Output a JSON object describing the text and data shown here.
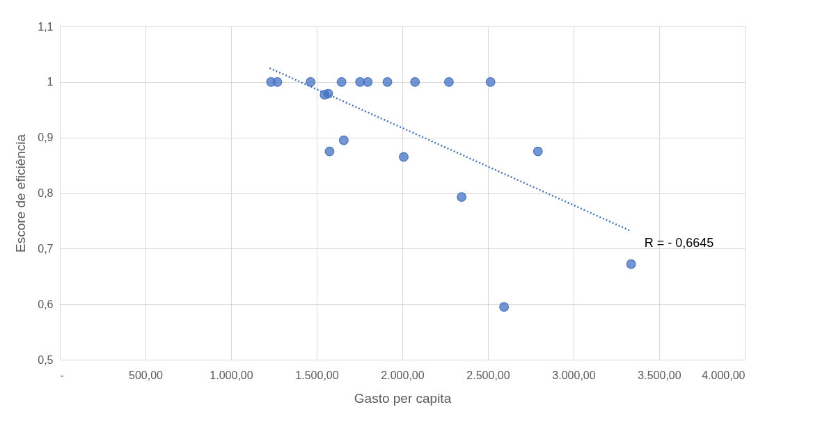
{
  "chart_data": {
    "type": "scatter",
    "xlabel": "Gasto per capita",
    "ylabel": "Escore de eficiência",
    "series": [
      {
        "marker": "circle",
        "color": "#4472c4",
        "x": [
          1233,
          1270,
          1464,
          1546,
          1567,
          1575,
          1645,
          1658,
          1753,
          1798,
          1913,
          2008,
          2074,
          2272,
          2346,
          2515,
          2594,
          2792,
          3336
        ],
        "values": [
          1.0,
          1.0,
          1.0,
          0.977,
          0.979,
          0.875,
          1.0,
          0.895,
          1.0,
          1.0,
          1.0,
          0.865,
          1.0,
          1.0,
          0.793,
          1.0,
          0.595,
          0.875,
          0.672
        ]
      },
      {
        "type": "line",
        "color": "#4472c4",
        "line_style": "dotted",
        "marker": "none",
        "x": [
          1225,
          3332
        ],
        "values": [
          1.025,
          0.732
        ]
      }
    ],
    "xlim": [
      0,
      4000
    ],
    "xticks": [
      {
        "value": 0,
        "label": "-"
      },
      {
        "value": 500,
        "label": "500,00"
      },
      {
        "value": 1000,
        "label": "1.000,00"
      },
      {
        "value": 1500,
        "label": "1.500,00"
      },
      {
        "value": 2000,
        "label": "2.000,00"
      },
      {
        "value": 2500,
        "label": "2.500,00"
      },
      {
        "value": 3000,
        "label": "3.000,00"
      },
      {
        "value": 3500,
        "label": "3.500,00"
      },
      {
        "value": 4000,
        "label": "4.000,00"
      }
    ],
    "ylim": [
      0.5,
      1.1
    ],
    "yticks": [
      {
        "value": 0.5,
        "label": "0,5"
      },
      {
        "value": 0.6,
        "label": "0,6"
      },
      {
        "value": 0.7,
        "label": "0,7"
      },
      {
        "value": 0.8,
        "label": "0,8"
      },
      {
        "value": 0.9,
        "label": "0,9"
      },
      1,
      {
        "value": 1.1,
        "label": "1,1"
      }
    ],
    "annotations": [
      "R = - 0,6645"
    ],
    "grid": true,
    "legend": false
  }
}
